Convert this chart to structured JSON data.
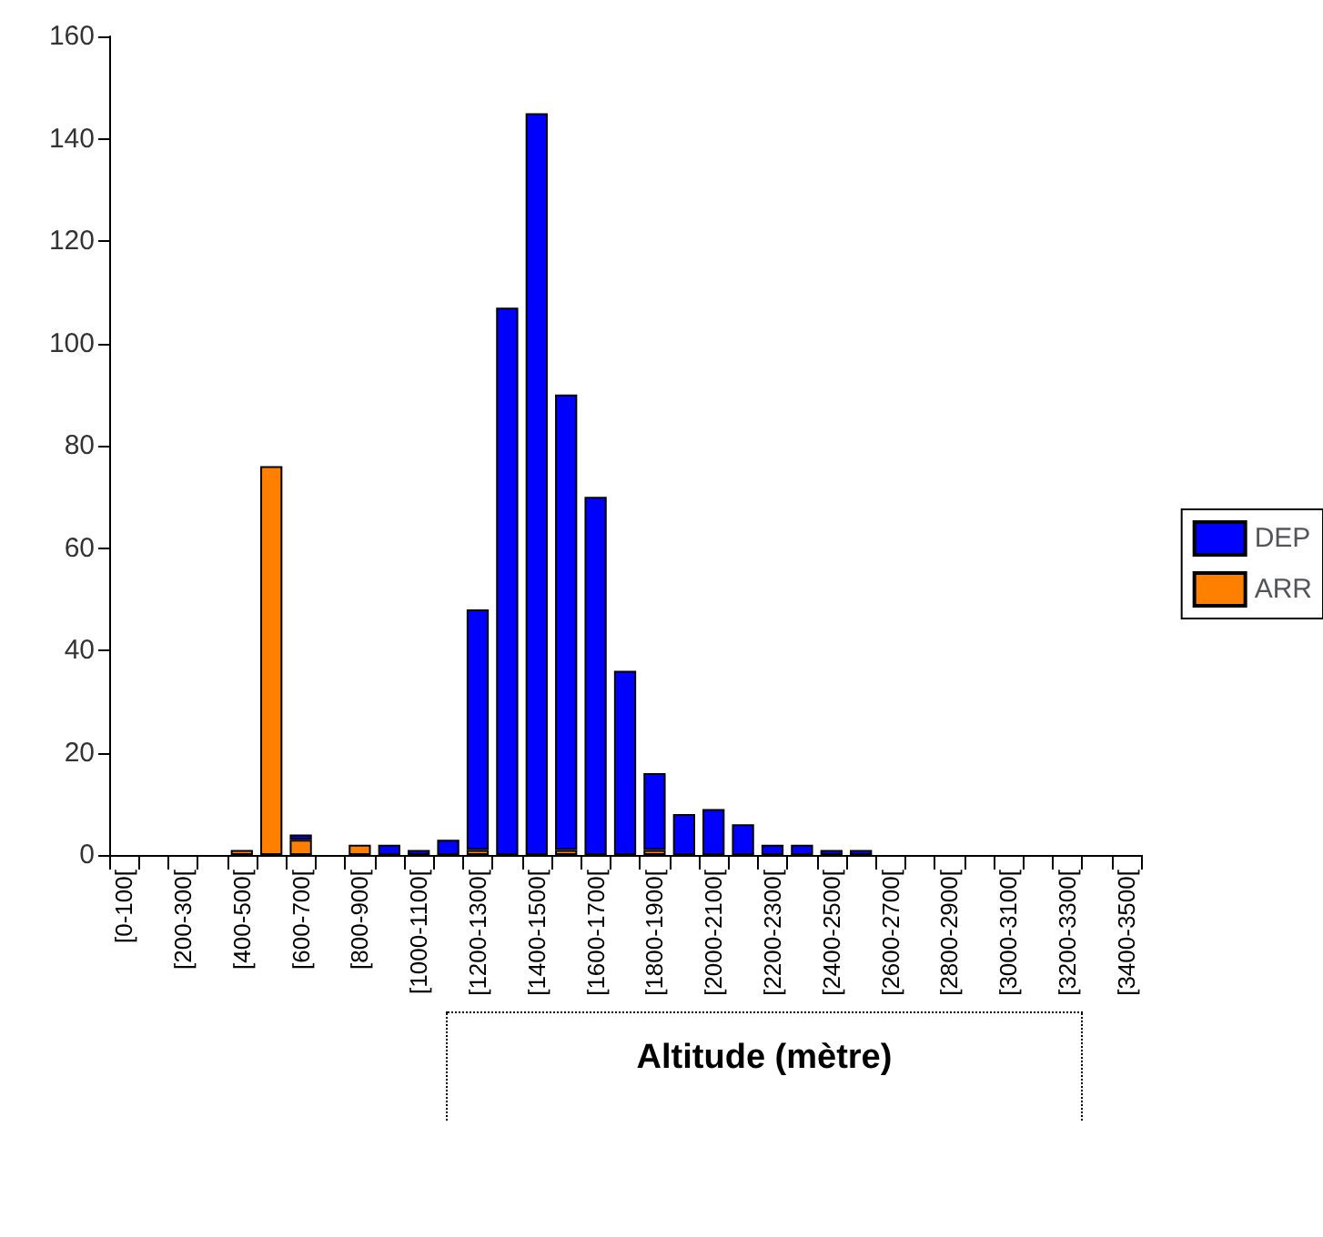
{
  "chart_data": {
    "type": "bar",
    "stacked": true,
    "xlabel": "Altitude (mètre)",
    "categories": [
      "[0-100[",
      null,
      "[200-300[",
      null,
      "[400-500[",
      null,
      "[600-700[",
      null,
      "[800-900[",
      null,
      "[1000-1100[",
      null,
      "[1200-1300[",
      null,
      "[1400-1500[",
      null,
      "[1600-1700[",
      null,
      "[1800-1900[",
      null,
      "[2000-2100[",
      null,
      "[2200-2300[",
      null,
      "[2400-2500[",
      null,
      "[2600-2700[",
      null,
      "[2800-2900[",
      null,
      "[3000-3100[",
      null,
      "[3200-3300[",
      null,
      "[3400-3500["
    ],
    "series": [
      {
        "name": "ARR",
        "color": "#ff8000",
        "values": [
          0,
          0,
          0,
          0,
          1,
          76,
          3,
          0,
          2,
          0,
          0,
          0,
          1,
          0,
          0,
          1,
          0,
          0,
          1,
          0,
          0,
          0,
          0,
          0,
          0,
          0,
          0,
          0,
          0,
          0,
          0,
          0,
          0,
          0,
          0
        ]
      },
      {
        "name": "DEP",
        "color": "#0000ff",
        "values": [
          0,
          0,
          0,
          0,
          0,
          0,
          1,
          0,
          0,
          2,
          1,
          3,
          47,
          107,
          145,
          89,
          70,
          36,
          15,
          8,
          9,
          6,
          2,
          2,
          1,
          1,
          0,
          0,
          0,
          0,
          0,
          0,
          0,
          0,
          0
        ]
      }
    ],
    "ylim": [
      0,
      160
    ],
    "yticks": [
      0,
      20,
      40,
      60,
      80,
      100,
      120,
      140,
      160
    ],
    "grid": false,
    "legend": "right"
  }
}
